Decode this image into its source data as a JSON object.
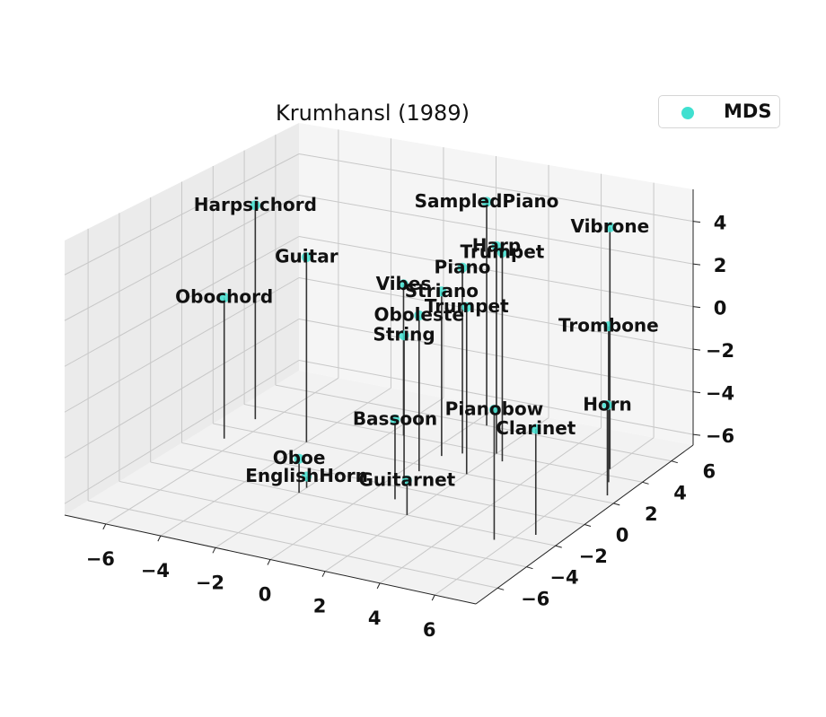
{
  "chart_data": {
    "type": "scatter",
    "title": "Krumhansl (1989)",
    "series": [
      {
        "name": "MDS",
        "color": "#40e0d0",
        "points": [
          {
            "label": "Vibrone",
            "x": 6,
            "y": 4.5,
            "z": 4.5
          },
          {
            "label": "Trombone",
            "x": 6.5,
            "y": 3.5,
            "z": 0.5
          },
          {
            "label": "Horn",
            "x": 7,
            "y": 2.5,
            "z": -2.5
          },
          {
            "label": "Clarinet",
            "x": 6.5,
            "y": -1.5,
            "z": -2
          },
          {
            "label": "Pianobow",
            "x": 5.5,
            "y": -2.5,
            "z": -1
          },
          {
            "label": "Harpsichord",
            "x": -6.5,
            "y": 3,
            "z": 3.5
          },
          {
            "label": "Trumpet",
            "x": 2.5,
            "y": 3.5,
            "z": 3
          },
          {
            "label": "Piano",
            "x": 1,
            "y": 3.5,
            "z": 2
          },
          {
            "label": "Trumpet",
            "x": 2,
            "y": 2,
            "z": 1
          },
          {
            "label": "Harp",
            "x": 2,
            "y": 4,
            "z": 3
          },
          {
            "label": "SampledPiano",
            "x": 0.5,
            "y": 6,
            "z": 4
          },
          {
            "label": "Guitar",
            "x": -4,
            "y": 2,
            "z": 2
          },
          {
            "label": "Striano",
            "x": 0.5,
            "y": 3,
            "z": 1
          },
          {
            "label": "Vibes",
            "x": -1.5,
            "y": 4,
            "z": 0.5
          },
          {
            "label": "Oboleste",
            "x": 0.5,
            "y": 1.5,
            "z": 0.5
          },
          {
            "label": "String",
            "x": 0.5,
            "y": 0.5,
            "z": 0
          },
          {
            "label": "Obochord",
            "x": -6.5,
            "y": 1,
            "z": 0
          },
          {
            "label": "Bassoon",
            "x": 1,
            "y": -1,
            "z": -3
          },
          {
            "label": "Guitarnet",
            "x": 2,
            "y": -2,
            "z": -5
          },
          {
            "label": "Oboe",
            "x": -2,
            "y": -2,
            "z": -5
          },
          {
            "label": "EnglishHorn",
            "x": -2,
            "y": -1.5,
            "z": -6
          }
        ]
      }
    ],
    "legend": {
      "position": "top-right",
      "entries": [
        "MDS"
      ]
    },
    "xticks": [
      "−6",
      "−4",
      "−2",
      "0",
      "2",
      "4",
      "6"
    ],
    "yticks": [
      "−6",
      "−4",
      "−2",
      "0",
      "2",
      "4",
      "6"
    ],
    "zticks": [
      "−6",
      "−4",
      "−2",
      "0",
      "2",
      "4"
    ],
    "xlim": [
      -7.5,
      7.5
    ],
    "ylim": [
      -7.5,
      7.5
    ],
    "zlim": [
      -6.5,
      5.5
    ],
    "grid": true
  }
}
